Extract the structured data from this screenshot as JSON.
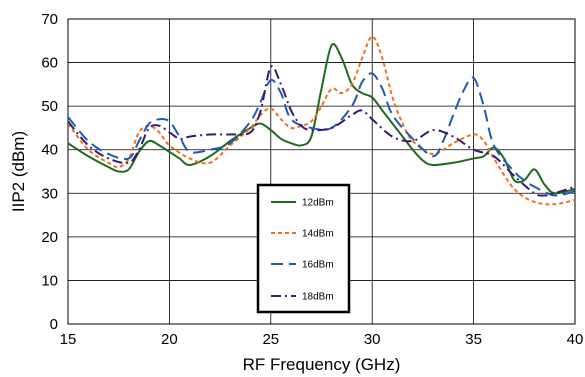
{
  "chart_data": {
    "type": "line",
    "xlabel": "RF Frequency (GHz)",
    "ylabel": "IIP2 (dBm)",
    "xlim": [
      15,
      40
    ],
    "ylim": [
      0,
      70
    ],
    "xticks": [
      15,
      20,
      25,
      30,
      35,
      40
    ],
    "yticks": [
      0,
      10,
      20,
      30,
      40,
      50,
      60,
      70
    ],
    "grid": true,
    "legend_position": "center",
    "series": [
      {
        "name": "12dBm",
        "color": "#1e6b1e",
        "dash": "solid",
        "x": [
          15,
          16,
          17,
          17.5,
          18,
          18.5,
          19,
          19.5,
          20,
          20.5,
          21,
          22,
          23,
          24,
          24.5,
          25,
          25.5,
          26,
          26.5,
          27,
          27.5,
          28,
          28.5,
          29,
          29.5,
          30,
          30.5,
          31,
          31.5,
          32,
          32.5,
          33,
          34,
          35,
          35.5,
          36,
          36.5,
          37,
          37.5,
          38,
          38.5,
          39,
          40
        ],
        "y": [
          41.5,
          38.5,
          36,
          35,
          35.5,
          39.5,
          42,
          41,
          39.5,
          38,
          36.5,
          38.5,
          42,
          45,
          46,
          44.5,
          42.5,
          41.5,
          41,
          43,
          54,
          64,
          61,
          55,
          53,
          52,
          49,
          46,
          43,
          40,
          37.5,
          36.5,
          37,
          38,
          38.5,
          40.5,
          38,
          33,
          33,
          35.5,
          32,
          30,
          31
        ]
      },
      {
        "name": "14dBm",
        "color": "#f07020",
        "dash": "4,3",
        "x": [
          15,
          16,
          17,
          17.5,
          18,
          18.5,
          19,
          19.5,
          20,
          21,
          22,
          23,
          24,
          24.5,
          25,
          25.5,
          26,
          26.5,
          27,
          27.5,
          28,
          28.5,
          29,
          29.5,
          30,
          30.5,
          31,
          31.5,
          32,
          33,
          34,
          35,
          35.5,
          36,
          37,
          38,
          39,
          40
        ],
        "y": [
          46,
          40,
          37,
          36,
          38,
          44,
          45.5,
          44,
          41,
          38,
          37,
          41,
          45,
          48,
          49.5,
          47,
          45,
          45.5,
          46.5,
          50,
          54,
          53,
          55,
          61,
          66,
          61,
          52,
          46,
          42,
          39,
          41.5,
          43.5,
          42,
          38,
          31,
          28,
          27.5,
          28.5
        ]
      },
      {
        "name": "16dBm",
        "color": "#1f5bb5",
        "dash": "12,6",
        "x": [
          15,
          16,
          17,
          18,
          18.5,
          19,
          19.5,
          20,
          20.5,
          21,
          22,
          23,
          24,
          24.5,
          25,
          25.5,
          26,
          27,
          28,
          29,
          29.5,
          30,
          30.5,
          31,
          32,
          33,
          33.5,
          34,
          34.5,
          35,
          35.5,
          36,
          37,
          37.5,
          38,
          39,
          40
        ],
        "y": [
          47.5,
          42,
          39,
          38,
          42,
          46,
          47,
          46.5,
          43,
          39.5,
          40,
          41.5,
          46.5,
          51,
          56,
          53,
          47,
          45,
          45,
          50,
          55.5,
          57.5,
          54,
          48,
          42.5,
          38.5,
          42,
          48,
          53.5,
          56.5,
          50,
          41,
          35,
          33,
          31.5,
          29.5,
          30.5
        ]
      },
      {
        "name": "18dBm",
        "color": "#3a1a6e",
        "dash": "10,4,2,4",
        "x": [
          15,
          16,
          17,
          18,
          18.5,
          19,
          19.5,
          20,
          20.5,
          21,
          22,
          23,
          24,
          24.5,
          25,
          25.5,
          26,
          26.5,
          27,
          28,
          29,
          29.5,
          30,
          31,
          32,
          33,
          34,
          35,
          36,
          37,
          38,
          38.5,
          39,
          40
        ],
        "y": [
          46.5,
          41,
          38,
          37,
          40,
          45,
          45.5,
          44,
          42.5,
          43,
          43.5,
          43.5,
          44,
          49,
          59,
          55,
          49,
          45.5,
          44.5,
          45,
          48,
          49,
          47,
          43,
          42,
          44.5,
          43,
          40,
          38.5,
          34,
          30,
          29.5,
          30,
          31.5
        ]
      }
    ]
  }
}
